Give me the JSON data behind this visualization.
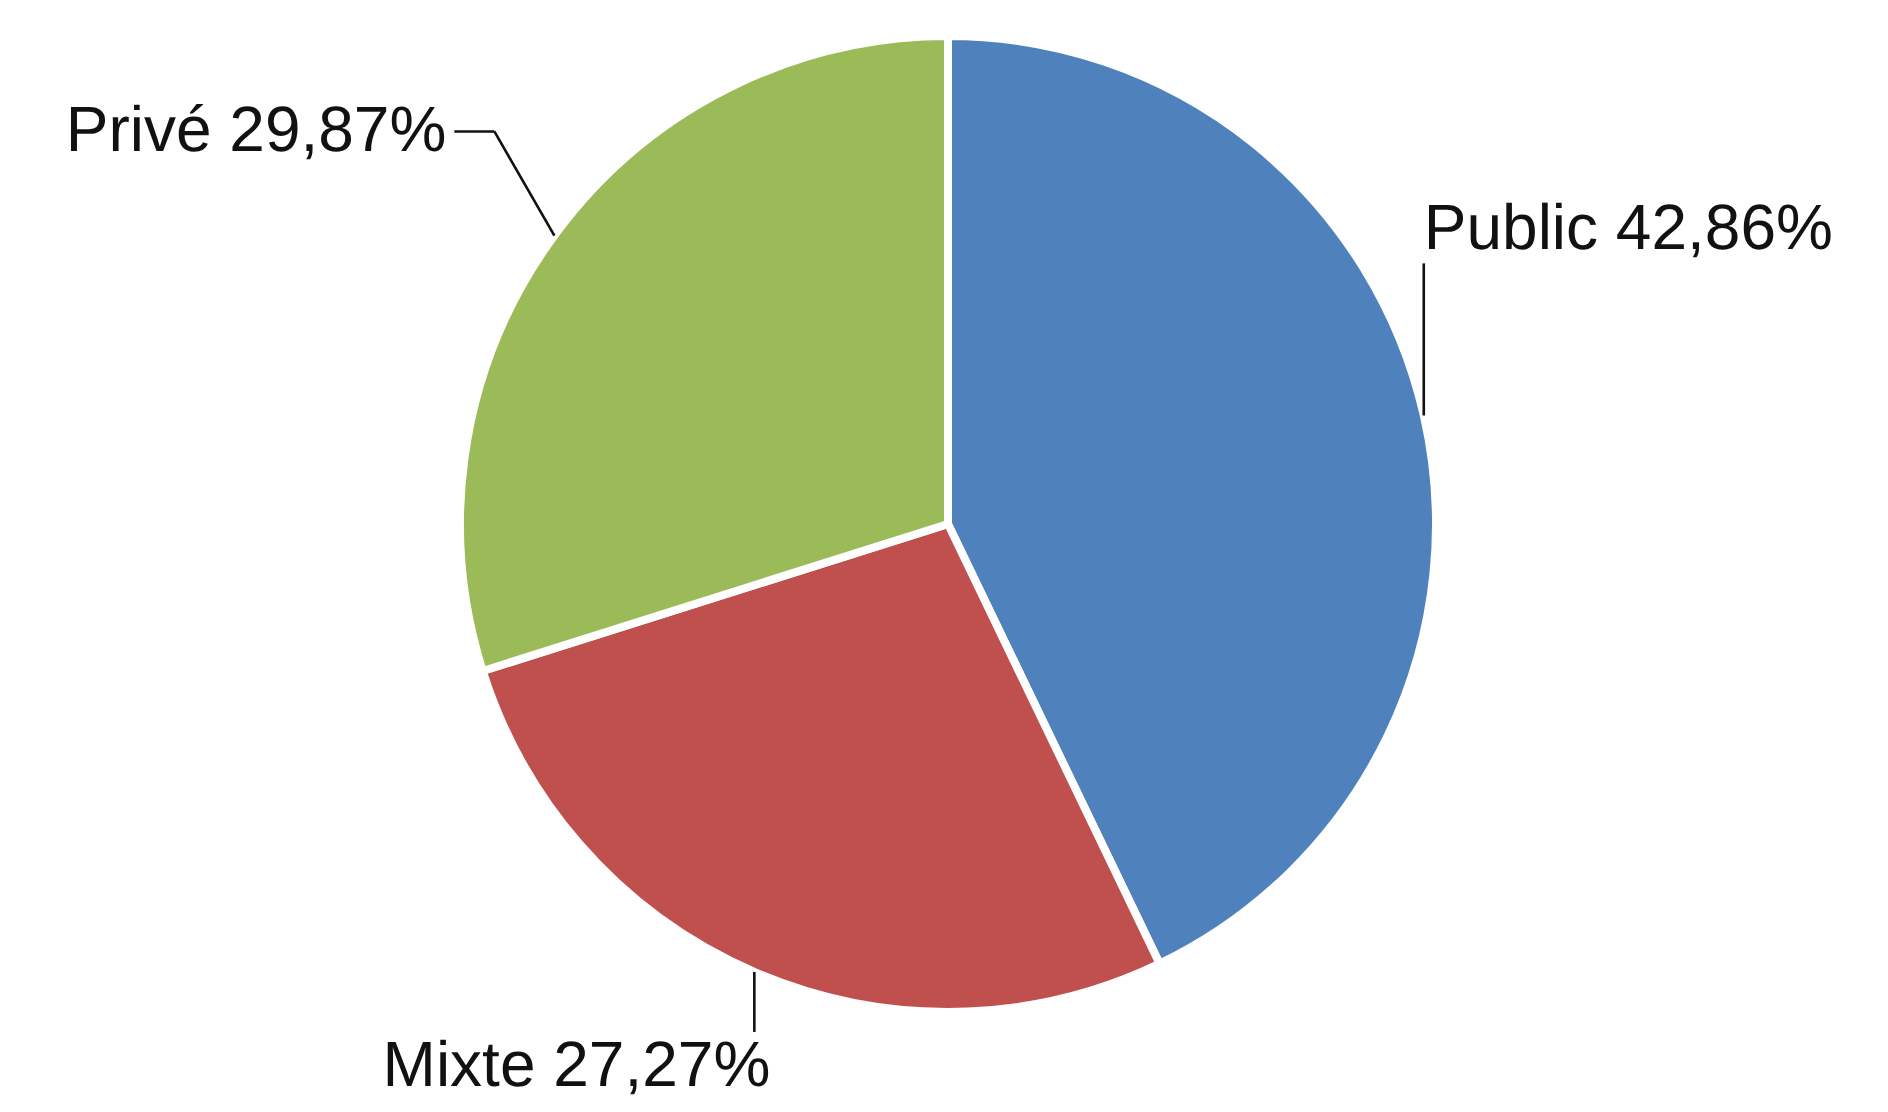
{
  "chart_data": {
    "type": "pie",
    "categories": [
      "Public",
      "Mixte",
      "Privé"
    ],
    "values": [
      42.86,
      27.27,
      29.87
    ],
    "colors": [
      "#4f81bd",
      "#c0504d",
      "#9bbb59"
    ],
    "value_labels": [
      "42,86%",
      "27,27%",
      "29,87%"
    ]
  }
}
